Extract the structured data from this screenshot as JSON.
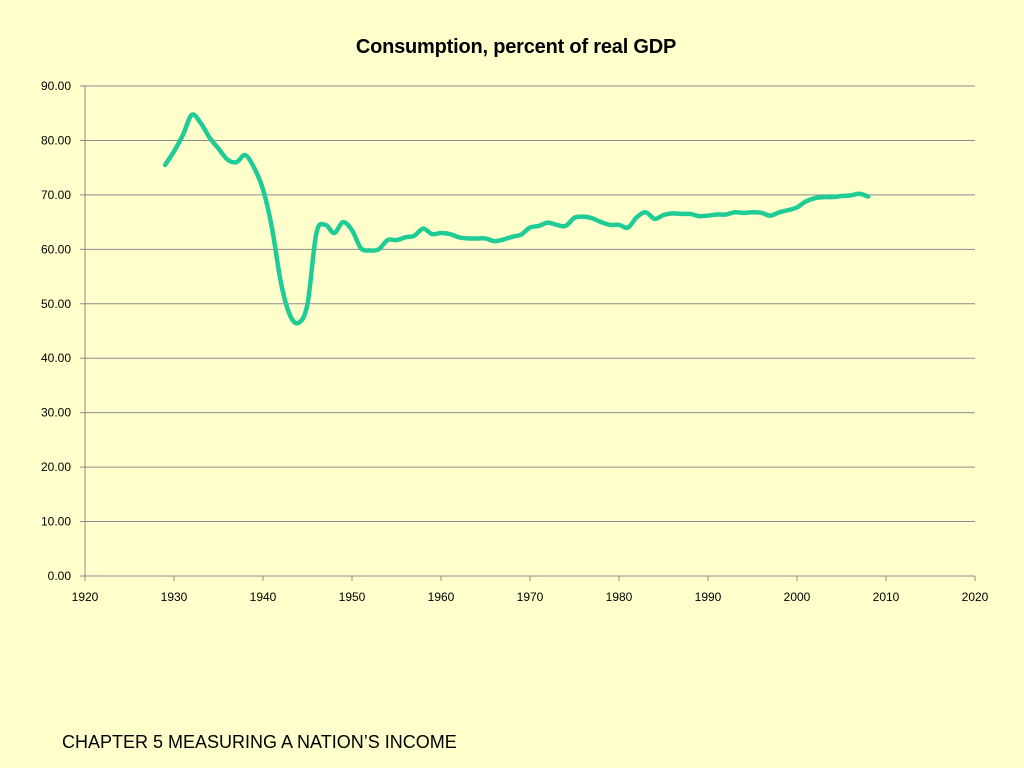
{
  "slide": {
    "footer": "CHAPTER 5 MEASURING A NATION’S INCOME"
  },
  "chart_data": {
    "type": "line",
    "title": "Consumption, percent of real GDP",
    "xlabel": "",
    "ylabel": "",
    "xlim": [
      1920,
      2020
    ],
    "ylim": [
      0,
      90
    ],
    "x_ticks": [
      "1920",
      "1930",
      "1940",
      "1950",
      "1960",
      "1970",
      "1980",
      "1990",
      "2000",
      "2010",
      "2020"
    ],
    "y_ticks": [
      "0.00",
      "10.00",
      "20.00",
      "30.00",
      "40.00",
      "50.00",
      "60.00",
      "70.00",
      "80.00",
      "90.00"
    ],
    "grid": "horizontal",
    "legend": "none",
    "line_color": "#1FCC96",
    "gridline_color": "#8C8C8C",
    "background_color": "#FFFFCC",
    "series": [
      {
        "x": [
          1929,
          1930,
          1931,
          1932,
          1933,
          1934,
          1935,
          1936,
          1937,
          1938,
          1939,
          1940,
          1941,
          1942,
          1943,
          1944,
          1945,
          1946,
          1947,
          1948,
          1949,
          1950,
          1951,
          1952,
          1953,
          1954,
          1955,
          1956,
          1957,
          1958,
          1959,
          1960,
          1961,
          1962,
          1963,
          1964,
          1965,
          1966,
          1967,
          1968,
          1969,
          1970,
          1971,
          1972,
          1973,
          1974,
          1975,
          1976,
          1977,
          1978,
          1979,
          1980,
          1981,
          1982,
          1983,
          1984,
          1985,
          1986,
          1987,
          1988,
          1989,
          1990,
          1991,
          1992,
          1993,
          1994,
          1995,
          1996,
          1997,
          1998,
          1999,
          2000,
          2001,
          2002,
          2003,
          2004,
          2005,
          2006,
          2007,
          2008
        ],
        "values": [
          75.5,
          78.0,
          81.0,
          84.7,
          83.2,
          80.5,
          78.5,
          76.5,
          76.0,
          77.3,
          75.0,
          71.0,
          64.0,
          54.0,
          48.0,
          46.5,
          50.0,
          63.0,
          64.5,
          63.0,
          65.0,
          63.5,
          60.2,
          59.8,
          60.0,
          61.7,
          61.7,
          62.2,
          62.5,
          63.8,
          62.8,
          63.0,
          62.8,
          62.2,
          62.0,
          62.0,
          62.0,
          61.5,
          61.8,
          62.3,
          62.7,
          64.0,
          64.3,
          64.9,
          64.5,
          64.3,
          65.8,
          66.0,
          65.7,
          65.0,
          64.5,
          64.5,
          64.0,
          65.9,
          66.8,
          65.6,
          66.3,
          66.6,
          66.5,
          66.5,
          66.1,
          66.2,
          66.4,
          66.4,
          66.8,
          66.7,
          66.8,
          66.7,
          66.2,
          66.8,
          67.2,
          67.7,
          68.8,
          69.4,
          69.6,
          69.6,
          69.8,
          69.9,
          70.2,
          69.7
        ]
      }
    ]
  }
}
